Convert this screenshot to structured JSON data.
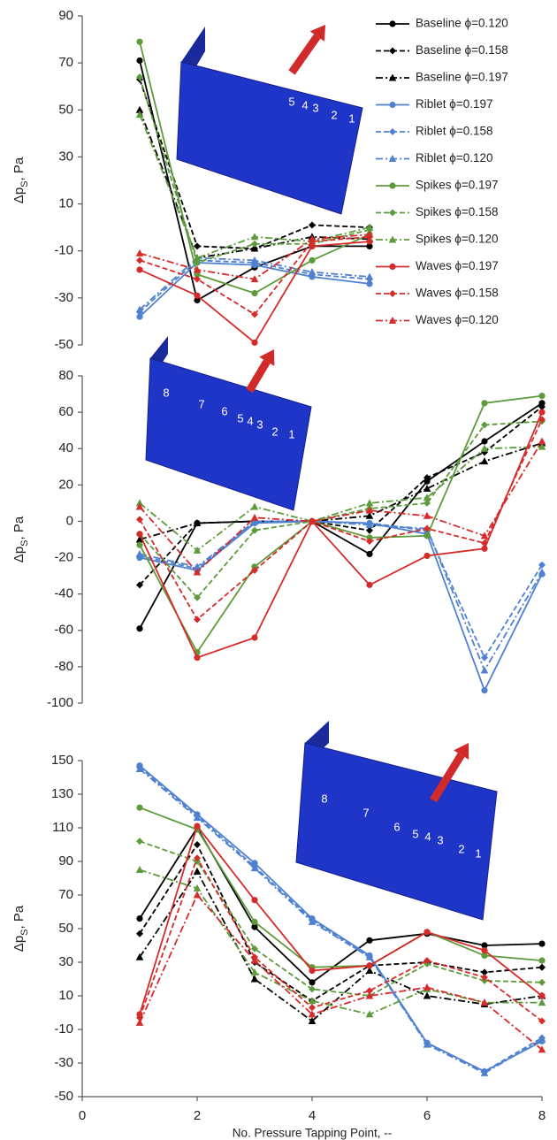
{
  "chart_data": [
    {
      "type": "line",
      "ylabel": [
        "Δp",
        "S",
        ", Pa"
      ],
      "x": [
        1,
        2,
        3,
        4,
        5
      ],
      "xlim": [
        0,
        8
      ],
      "ylim": [
        -50,
        90
      ],
      "yticks": [
        -50,
        -30,
        -10,
        10,
        30,
        50,
        70,
        90
      ],
      "inset_labels": [
        "5",
        "4",
        "3",
        "2",
        "1"
      ],
      "legend": "upper right",
      "series": [
        {
          "name": "Baseline ϕ=0.120",
          "color": "#000000",
          "dash": "solid",
          "marker": "circle",
          "values": [
            71,
            -31,
            -17,
            -8,
            -8
          ]
        },
        {
          "name": "Baseline ϕ=0.158",
          "color": "#000000",
          "dash": "dashed",
          "marker": "diamond",
          "values": [
            63,
            -8,
            -9,
            1,
            0
          ]
        },
        {
          "name": "Baseline ϕ=0.197",
          "color": "#000000",
          "dash": "dashdot",
          "marker": "triangle",
          "values": [
            50,
            -13,
            -9,
            -4,
            -5
          ]
        },
        {
          "name": "Riblet ϕ=0.197",
          "color": "#4f81d0",
          "dash": "solid",
          "marker": "circle",
          "values": [
            -38,
            -15,
            -16,
            -21,
            -24
          ]
        },
        {
          "name": "Riblet ϕ=0.158",
          "color": "#4f81d0",
          "dash": "dashed",
          "marker": "diamond",
          "values": [
            -36,
            -14,
            -15,
            -20,
            -22
          ]
        },
        {
          "name": "Riblet ϕ=0.120",
          "color": "#4f81d0",
          "dash": "dashdot",
          "marker": "triangle",
          "values": [
            -35,
            -13,
            -14,
            -19,
            -21
          ]
        },
        {
          "name": "Spikes ϕ=0.197",
          "color": "#5e9b3c",
          "dash": "solid",
          "marker": "circle",
          "values": [
            79,
            -20,
            -28,
            -14,
            -3
          ]
        },
        {
          "name": "Spikes ϕ=0.158",
          "color": "#5e9b3c",
          "dash": "dashed",
          "marker": "diamond",
          "values": [
            64,
            -15,
            -7,
            -7,
            -1
          ]
        },
        {
          "name": "Spikes ϕ=0.120",
          "color": "#5e9b3c",
          "dash": "dashdot",
          "marker": "triangle",
          "values": [
            48,
            -13,
            -4,
            -6,
            0
          ]
        },
        {
          "name": "Waves ϕ=0.197",
          "color": "#d62b2b",
          "dash": "solid",
          "marker": "circle",
          "values": [
            -18,
            -29,
            -49,
            -8,
            -6
          ]
        },
        {
          "name": "Waves ϕ=0.158",
          "color": "#d62b2b",
          "dash": "dashed",
          "marker": "diamond",
          "values": [
            -14,
            -22,
            -37,
            -6,
            -4
          ]
        },
        {
          "name": "Waves ϕ=0.120",
          "color": "#d62b2b",
          "dash": "dashdot",
          "marker": "triangle",
          "values": [
            -11,
            -18,
            -22,
            -5,
            -3
          ]
        }
      ]
    },
    {
      "type": "line",
      "ylabel": [
        "Δp",
        "S",
        ", Pa"
      ],
      "x": [
        1,
        2,
        3,
        4,
        5,
        6,
        7,
        8
      ],
      "xlim": [
        0,
        8
      ],
      "ylim": [
        -100,
        80
      ],
      "yticks": [
        -100,
        -80,
        -60,
        -40,
        -20,
        0,
        20,
        40,
        60,
        80
      ],
      "inset_labels": [
        "8",
        "7",
        "6",
        "5",
        "4",
        "3",
        "2",
        "1"
      ],
      "series": [
        {
          "color": "#000000",
          "dash": "solid",
          "marker": "circle",
          "values": [
            -59,
            -1,
            0,
            0,
            -18,
            22,
            44,
            65
          ]
        },
        {
          "color": "#000000",
          "dash": "dashed",
          "marker": "diamond",
          "values": [
            -35,
            -1,
            0,
            0,
            -5,
            24,
            38,
            63
          ]
        },
        {
          "color": "#000000",
          "dash": "dashdot",
          "marker": "triangle",
          "values": [
            -10,
            -1,
            0,
            0,
            3,
            18,
            33,
            43
          ]
        },
        {
          "color": "#4f81d0",
          "dash": "solid",
          "marker": "circle",
          "values": [
            -20,
            -27,
            -1,
            0,
            -1,
            -7,
            -93,
            -29
          ]
        },
        {
          "color": "#4f81d0",
          "dash": "dashed",
          "marker": "diamond",
          "values": [
            -19,
            -26,
            0,
            0,
            -1,
            -5,
            -75,
            -24
          ]
        },
        {
          "color": "#4f81d0",
          "dash": "dashdot",
          "marker": "triangle",
          "values": [
            -18,
            -25,
            0,
            0,
            -2,
            -4,
            -82,
            -28
          ]
        },
        {
          "color": "#5e9b3c",
          "dash": "solid",
          "marker": "circle",
          "values": [
            -13,
            -72,
            -25,
            0,
            -9,
            -8,
            65,
            69
          ]
        },
        {
          "color": "#5e9b3c",
          "dash": "dashed",
          "marker": "diamond",
          "values": [
            -7,
            -42,
            -5,
            0,
            7,
            10,
            53,
            55
          ]
        },
        {
          "color": "#5e9b3c",
          "dash": "dashdot",
          "marker": "triangle",
          "values": [
            10,
            -16,
            8,
            0,
            10,
            13,
            40,
            41
          ]
        },
        {
          "color": "#d62b2b",
          "dash": "solid",
          "marker": "circle",
          "values": [
            -7,
            -75,
            -64,
            0,
            -35,
            -19,
            -15,
            60
          ]
        },
        {
          "color": "#d62b2b",
          "dash": "dashed",
          "marker": "diamond",
          "values": [
            1,
            -54,
            -27,
            0,
            -11,
            -4,
            -12,
            56
          ]
        },
        {
          "color": "#d62b2b",
          "dash": "dashdot",
          "marker": "triangle",
          "values": [
            8,
            -28,
            2,
            0,
            6,
            3,
            -8,
            44
          ]
        }
      ]
    },
    {
      "type": "line",
      "ylabel": [
        "Δp",
        "S",
        ", Pa"
      ],
      "xlabel": "No. Pressure Tapping Point, --",
      "x": [
        1,
        2,
        3,
        4,
        5,
        6,
        7,
        8
      ],
      "xlim": [
        0,
        8
      ],
      "xticks": [
        0,
        2,
        4,
        6,
        8
      ],
      "ylim": [
        -50,
        150
      ],
      "yticks": [
        -50,
        -30,
        -10,
        10,
        30,
        50,
        70,
        90,
        110,
        130,
        150
      ],
      "inset_labels": [
        "8",
        "7",
        "6",
        "5",
        "4",
        "3",
        "2",
        "1"
      ],
      "series": [
        {
          "color": "#000000",
          "dash": "solid",
          "marker": "circle",
          "values": [
            56,
            110,
            51,
            18,
            43,
            47,
            40,
            41
          ]
        },
        {
          "color": "#000000",
          "dash": "dashed",
          "marker": "diamond",
          "values": [
            47,
            100,
            30,
            7,
            28,
            30,
            24,
            27
          ]
        },
        {
          "color": "#000000",
          "dash": "dashdot",
          "marker": "triangle",
          "values": [
            33,
            84,
            20,
            -5,
            25,
            10,
            5,
            10
          ]
        },
        {
          "color": "#4f81d0",
          "dash": "solid",
          "marker": "circle",
          "values": [
            147,
            118,
            89,
            56,
            34,
            -18,
            -35,
            -17
          ]
        },
        {
          "color": "#4f81d0",
          "dash": "dashed",
          "marker": "diamond",
          "values": [
            146,
            117,
            87,
            55,
            33,
            -18,
            -35,
            -15
          ]
        },
        {
          "color": "#4f81d0",
          "dash": "dashdot",
          "marker": "triangle",
          "values": [
            145,
            116,
            86,
            54,
            33,
            -19,
            -36,
            -16
          ]
        },
        {
          "color": "#5e9b3c",
          "dash": "solid",
          "marker": "circle",
          "values": [
            122,
            109,
            54,
            27,
            28,
            48,
            34,
            31
          ]
        },
        {
          "color": "#5e9b3c",
          "dash": "dashed",
          "marker": "diamond",
          "values": [
            102,
            90,
            38,
            14,
            10,
            29,
            19,
            18
          ]
        },
        {
          "color": "#5e9b3c",
          "dash": "dashdot",
          "marker": "triangle",
          "values": [
            85,
            74,
            24,
            7,
            -1,
            14,
            6,
            6
          ]
        },
        {
          "color": "#d62b2b",
          "dash": "solid",
          "marker": "circle",
          "values": [
            -1,
            111,
            67,
            25,
            28,
            48,
            37,
            10
          ]
        },
        {
          "color": "#d62b2b",
          "dash": "dashed",
          "marker": "diamond",
          "values": [
            -3,
            92,
            33,
            3,
            13,
            31,
            21,
            -5
          ]
        },
        {
          "color": "#d62b2b",
          "dash": "dashdot",
          "marker": "triangle",
          "values": [
            -6,
            70,
            31,
            -1,
            10,
            15,
            6,
            -22
          ]
        }
      ]
    }
  ]
}
